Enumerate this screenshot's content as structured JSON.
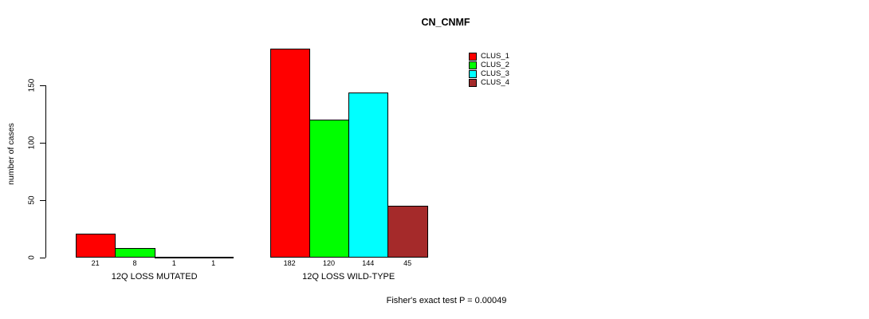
{
  "chart_data": {
    "type": "bar",
    "title": "CN_CNMF",
    "ylabel": "number of cases",
    "xlabel": "",
    "yticks": [
      0,
      50,
      100,
      150
    ],
    "ylim": [
      0,
      185
    ],
    "grid": false,
    "legend_position": "top-right",
    "series": [
      {
        "name": "CLUS_1",
        "color": "#FF0000"
      },
      {
        "name": "CLUS_2",
        "color": "#00FF00"
      },
      {
        "name": "CLUS_3",
        "color": "#00FFFF"
      },
      {
        "name": "CLUS_4",
        "color": "#A52A2A"
      }
    ],
    "categories": [
      "12Q LOSS MUTATED",
      "12Q LOSS WILD-TYPE"
    ],
    "groups": [
      {
        "category": "12Q LOSS MUTATED",
        "values": [
          21,
          8,
          1,
          1
        ]
      },
      {
        "category": "12Q LOSS WILD-TYPE",
        "values": [
          182,
          120,
          144,
          45
        ]
      }
    ],
    "show_value_labels": true,
    "footnote": "Fisher's exact test P = 0.00049"
  }
}
